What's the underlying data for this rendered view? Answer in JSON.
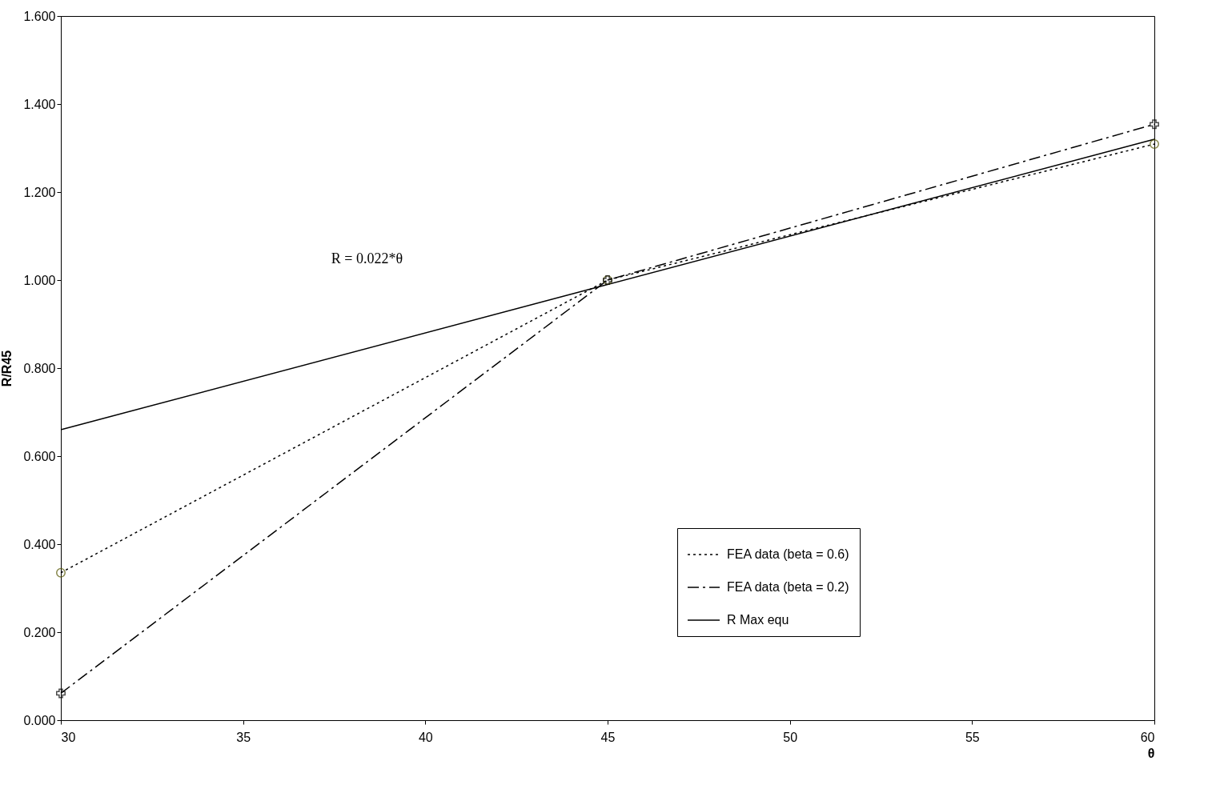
{
  "chart_data": {
    "type": "line",
    "xlabel": "θ",
    "ylabel": "R/R45",
    "x": [
      30,
      45,
      60
    ],
    "series": [
      {
        "name": "FEA data (beta = 0.6)",
        "color": "#000000",
        "marker": "circle",
        "line_style": "dotted",
        "values": [
          0.335,
          1.0,
          1.309
        ]
      },
      {
        "name": "FEA data (beta = 0.2)",
        "color": "#000000",
        "marker": "cross",
        "line_style": "dashed",
        "values": [
          0.061,
          1.0,
          1.354
        ]
      },
      {
        "name": "R Max equ",
        "color": "#000000",
        "marker": "none",
        "line_style": "solid",
        "values": [
          0.66,
          0.99,
          1.32
        ]
      }
    ],
    "xlim": [
      30,
      60
    ],
    "xticks": [
      30,
      35,
      40,
      45,
      50,
      55,
      60
    ],
    "ylim": [
      0,
      1.6
    ],
    "yticks": [
      {
        "value": 0,
        "label": "0.000"
      },
      {
        "value": 0.2,
        "label": "0.200"
      },
      {
        "value": 0.4,
        "label": "0.400"
      },
      {
        "value": 0.6,
        "label": "0.600"
      },
      {
        "value": 0.8,
        "label": "0.800"
      },
      {
        "value": 1,
        "label": "1.000"
      },
      {
        "value": 1.2,
        "label": "1.200"
      },
      {
        "value": 1.4,
        "label": "1.400"
      },
      {
        "value": 1.6,
        "label": "1.600"
      }
    ],
    "annotations": [
      "R = 0.022*θ"
    ],
    "grid": false,
    "legend": "bottom right"
  }
}
